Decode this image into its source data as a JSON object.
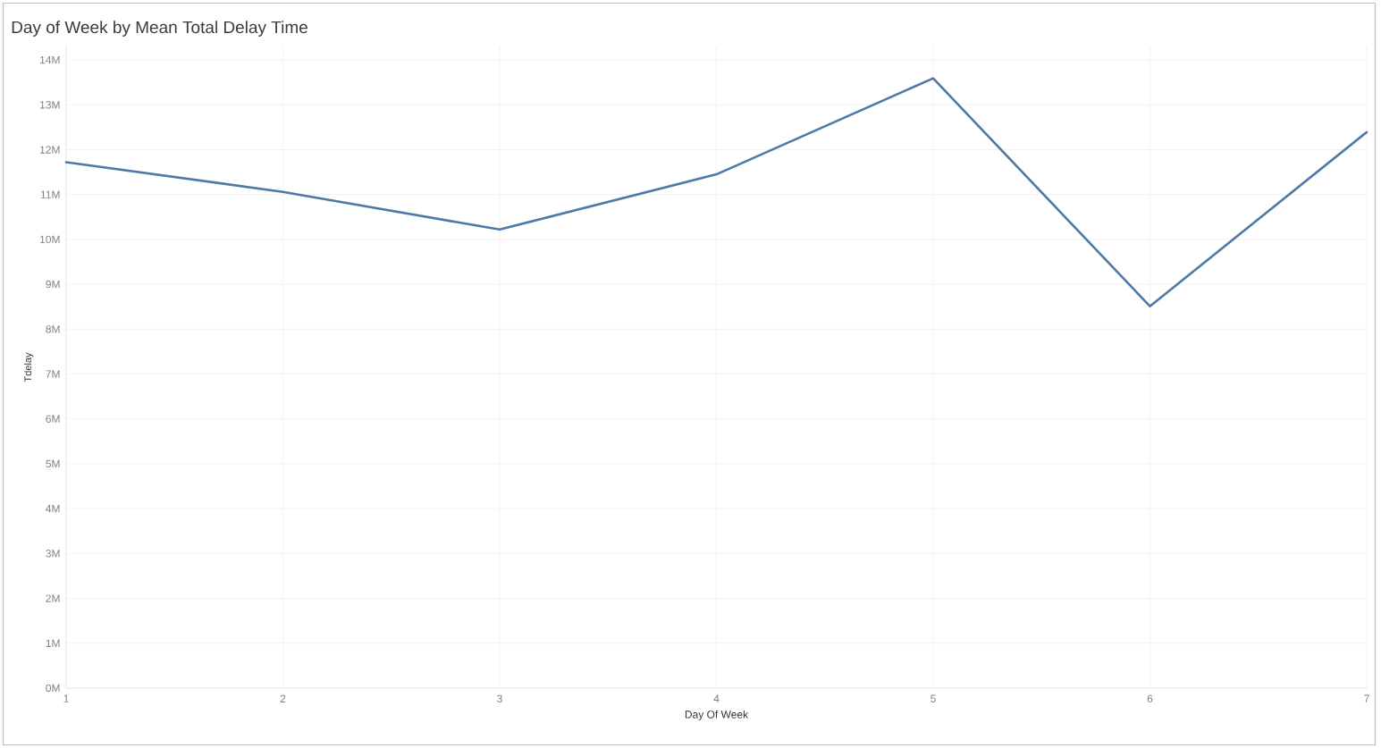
{
  "chart_data": {
    "type": "line",
    "title": "Day of Week by Mean Total Delay Time",
    "xlabel": "Day Of Week",
    "ylabel": "Tdelay",
    "x": [
      1,
      2,
      3,
      4,
      5,
      6,
      7
    ],
    "values": [
      11720000,
      11060000,
      10220000,
      11450000,
      13590000,
      8510000,
      12390000
    ],
    "color": "#4e79a7",
    "xlim": [
      1,
      7
    ],
    "xticks": [
      1,
      2,
      3,
      4,
      5,
      6,
      7
    ],
    "ylim": [
      0,
      14300000
    ],
    "yticks": [
      {
        "value": 0,
        "label": "0M"
      },
      {
        "value": 1000000,
        "label": "1M"
      },
      {
        "value": 2000000,
        "label": "2M"
      },
      {
        "value": 3000000,
        "label": "3M"
      },
      {
        "value": 4000000,
        "label": "4M"
      },
      {
        "value": 5000000,
        "label": "5M"
      },
      {
        "value": 6000000,
        "label": "6M"
      },
      {
        "value": 7000000,
        "label": "7M"
      },
      {
        "value": 8000000,
        "label": "8M"
      },
      {
        "value": 9000000,
        "label": "9M"
      },
      {
        "value": 10000000,
        "label": "10M"
      },
      {
        "value": 11000000,
        "label": "11M"
      },
      {
        "value": 12000000,
        "label": "12M"
      },
      {
        "value": 13000000,
        "label": "13M"
      },
      {
        "value": 14000000,
        "label": "14M"
      }
    ],
    "grid": true,
    "line_style": "solid"
  }
}
